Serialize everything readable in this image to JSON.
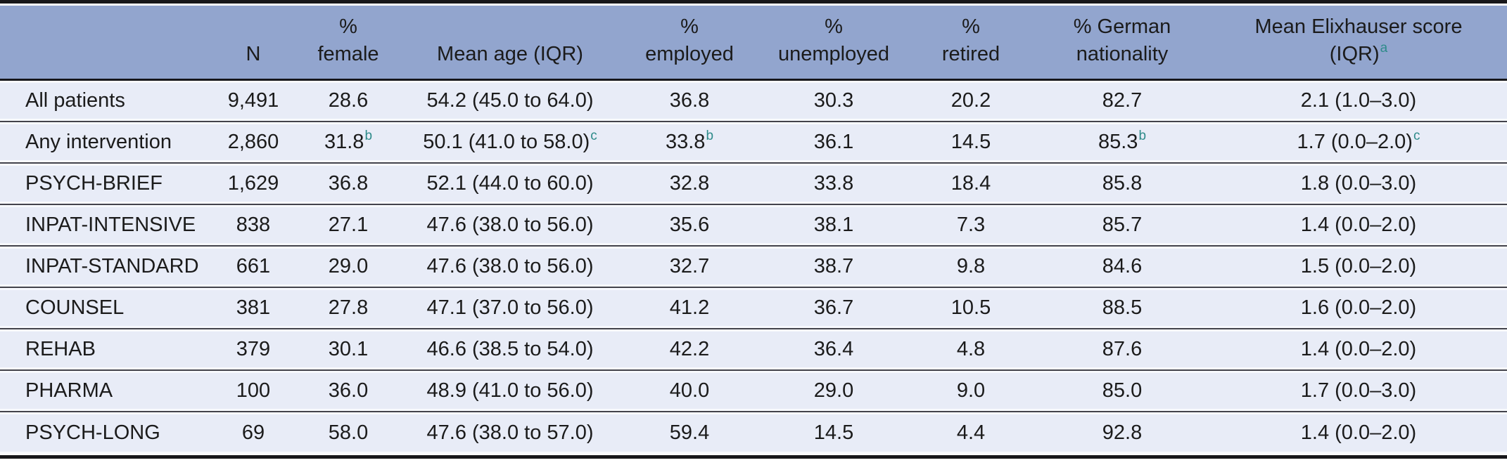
{
  "colors": {
    "header_bg": "#92A5CE",
    "row_bg": "#E8ECF7",
    "footnote": "#2E8B8A",
    "rule_dark": "#17171A",
    "rule_row": "#43434B",
    "text": "#1B1B1B"
  },
  "table": {
    "headers": [
      {
        "lines": [
          ""
        ]
      },
      {
        "lines": [
          "N"
        ]
      },
      {
        "lines": [
          "%",
          "female"
        ]
      },
      {
        "lines": [
          "Mean age (IQR)"
        ]
      },
      {
        "lines": [
          "%",
          "employed"
        ]
      },
      {
        "lines": [
          "%",
          "unemployed"
        ]
      },
      {
        "lines": [
          "%",
          "retired"
        ]
      },
      {
        "lines": [
          "% German",
          "nationality"
        ]
      },
      {
        "lines": [
          "Mean Elixhauser score",
          "(IQR)"
        ],
        "sup": "a"
      }
    ],
    "rows": [
      {
        "label": "All patients",
        "cells": [
          "9,491",
          "28.6",
          "54.2 (45.0 to 64.0)",
          "36.8",
          "30.3",
          "20.2",
          "82.7",
          "2.1 (1.0–3.0)"
        ]
      },
      {
        "label": "Any intervention",
        "cells": [
          "2,860",
          {
            "v": "31.8",
            "sup": "b"
          },
          {
            "v": "50.1 (41.0 to 58.0)",
            "sup": "c"
          },
          {
            "v": "33.8",
            "sup": "b"
          },
          "36.1",
          "14.5",
          {
            "v": "85.3",
            "sup": "b"
          },
          {
            "v": "1.7 (0.0–2.0)",
            "sup": "c"
          }
        ]
      },
      {
        "label": "PSYCH-BRIEF",
        "cells": [
          "1,629",
          "36.8",
          "52.1 (44.0 to 60.0)",
          "32.8",
          "33.8",
          "18.4",
          "85.8",
          "1.8 (0.0–3.0)"
        ]
      },
      {
        "label": "INPAT-INTENSIVE",
        "cells": [
          "838",
          "27.1",
          "47.6 (38.0 to 56.0)",
          "35.6",
          "38.1",
          "7.3",
          "85.7",
          "1.4 (0.0–2.0)"
        ]
      },
      {
        "label": "INPAT-STANDARD",
        "cells": [
          "661",
          "29.0",
          "47.6 (38.0 to 56.0)",
          "32.7",
          "38.7",
          "9.8",
          "84.6",
          "1.5 (0.0–2.0)"
        ]
      },
      {
        "label": "COUNSEL",
        "cells": [
          "381",
          "27.8",
          "47.1 (37.0 to 56.0)",
          "41.2",
          "36.7",
          "10.5",
          "88.5",
          "1.6 (0.0–2.0)"
        ]
      },
      {
        "label": "REHAB",
        "cells": [
          "379",
          "30.1",
          "46.6 (38.5 to 54.0)",
          "42.2",
          "36.4",
          "4.8",
          "87.6",
          "1.4 (0.0–2.0)"
        ]
      },
      {
        "label": "PHARMA",
        "cells": [
          "100",
          "36.0",
          "48.9 (41.0 to 56.0)",
          "40.0",
          "29.0",
          "9.0",
          "85.0",
          "1.7 (0.0–3.0)"
        ]
      },
      {
        "label": "PSYCH-LONG",
        "cells": [
          "69",
          "58.0",
          "47.6 (38.0 to 57.0)",
          "59.4",
          "14.5",
          "4.4",
          "92.8",
          "1.4 (0.0–2.0)"
        ]
      }
    ]
  }
}
